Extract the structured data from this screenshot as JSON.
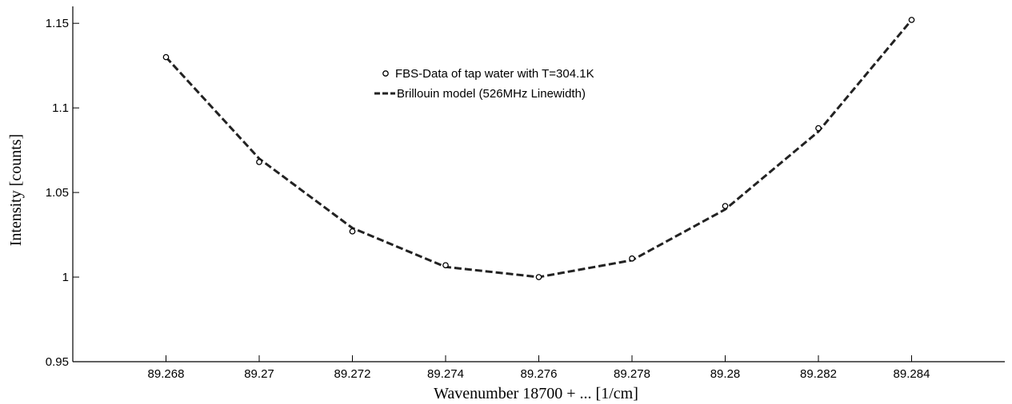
{
  "chart_data": {
    "type": "line",
    "xlabel": "Wavenumber 18700 + ... [1/cm]",
    "ylabel": "Intensity [counts]",
    "xlim": [
      89.266,
      89.286
    ],
    "ylim": [
      0.95,
      1.16
    ],
    "x_ticks": [
      89.268,
      89.27,
      89.272,
      89.274,
      89.276,
      89.278,
      89.28,
      89.282,
      89.284
    ],
    "x_tick_labels": [
      "89.268",
      "89.27",
      "89.272",
      "89.274",
      "89.276",
      "89.278",
      "89.28",
      "89.282",
      "89.284"
    ],
    "y_ticks": [
      0.95,
      1,
      1.05,
      1.1,
      1.15
    ],
    "y_tick_labels": [
      "0.95",
      "1",
      "1.05",
      "1.1",
      "1.15"
    ],
    "grid": false,
    "legend_position": "top-center",
    "series": [
      {
        "name": "FBS-Data of tap water with  T=304.1K",
        "style": "markers",
        "marker": "circle",
        "color": "#000000",
        "x": [
          89.268,
          89.27,
          89.272,
          89.274,
          89.276,
          89.278,
          89.28,
          89.282,
          89.284
        ],
        "y": [
          1.13,
          1.068,
          1.027,
          1.007,
          1.0,
          1.011,
          1.042,
          1.088,
          1.152
        ]
      },
      {
        "name": "Brillouin model (526MHz Linewidth)",
        "style": "dashed-line",
        "color": "#222222",
        "x": [
          89.268,
          89.27,
          89.272,
          89.274,
          89.276,
          89.278,
          89.28,
          89.282,
          89.284
        ],
        "y": [
          1.13,
          1.07,
          1.029,
          1.006,
          1.0,
          1.01,
          1.04,
          1.086,
          1.152
        ]
      }
    ]
  }
}
